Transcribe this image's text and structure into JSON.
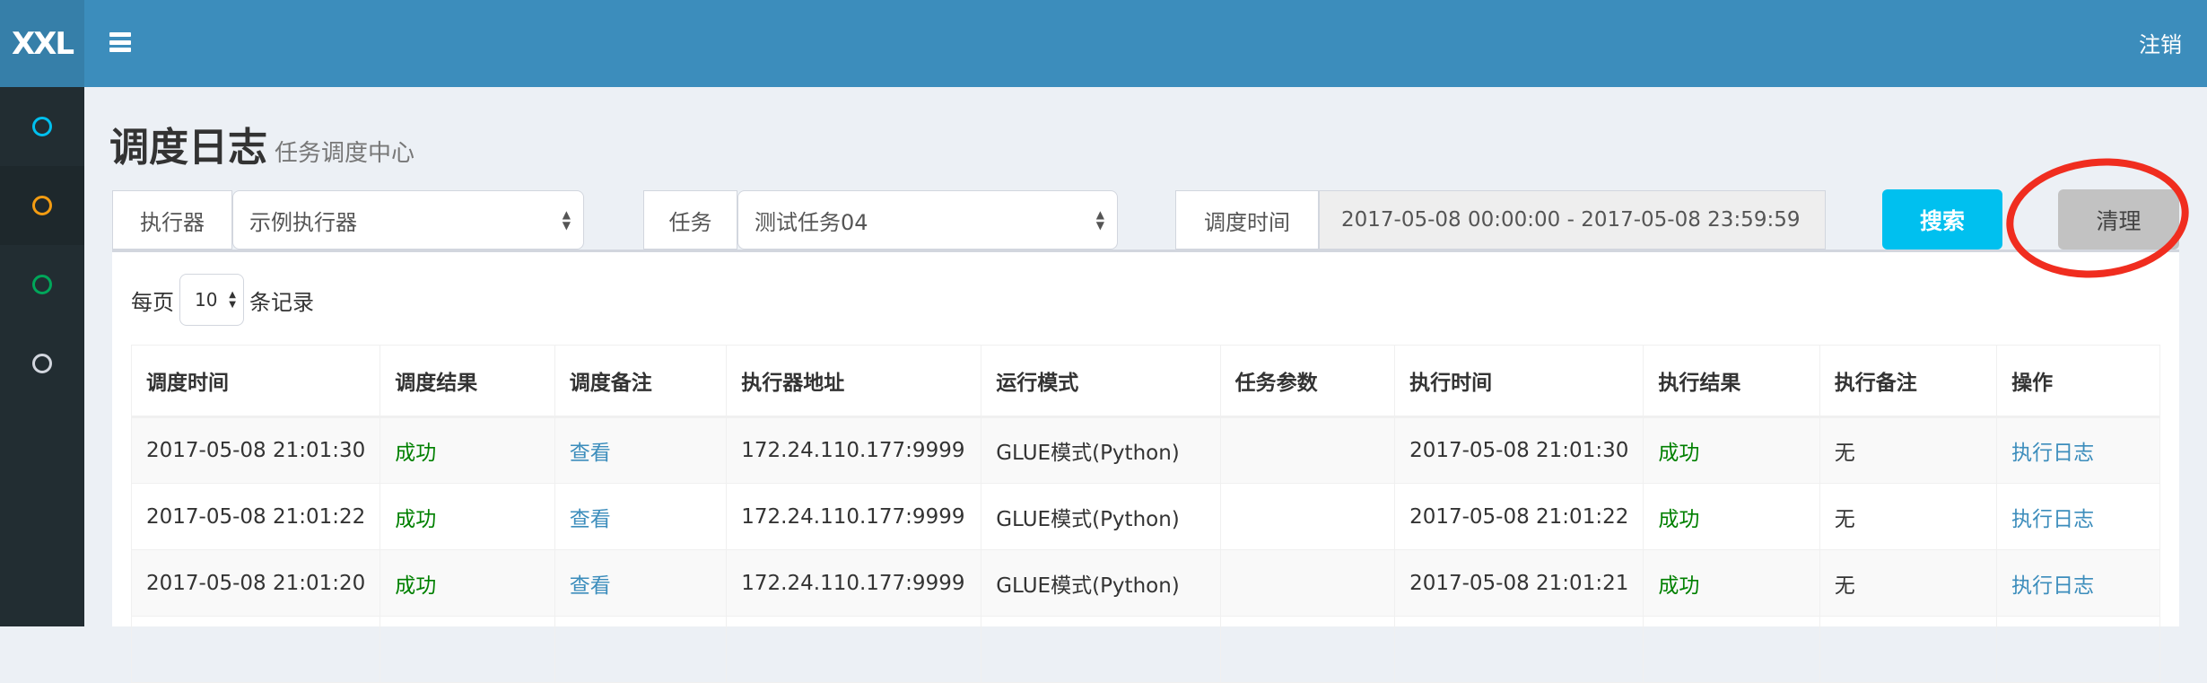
{
  "header": {
    "logo": "XXL",
    "logout": "注销",
    "menu_icon": "hamburger-icon"
  },
  "sidebar": {
    "items": [
      {
        "icon": "circle-icon",
        "color": "#00c0ef"
      },
      {
        "icon": "circle-icon",
        "color": "#f39c12",
        "active": true
      },
      {
        "icon": "circle-icon",
        "color": "#00a65a"
      },
      {
        "icon": "circle-icon",
        "color": "#d2d6de"
      }
    ]
  },
  "page": {
    "title": "调度日志",
    "subtitle": "任务调度中心"
  },
  "filters": {
    "executor_label": "执行器",
    "executor_value": "示例执行器",
    "task_label": "任务",
    "task_value": "测试任务04",
    "time_label": "调度时间",
    "time_value": "2017-05-08 00:00:00 - 2017-05-08 23:59:59",
    "search": "搜索",
    "clear": "清理"
  },
  "paging": {
    "prefix": "每页",
    "value": "10",
    "suffix": "条记录"
  },
  "table": {
    "columns": [
      "调度时间",
      "调度结果",
      "调度备注",
      "执行器地址",
      "运行模式",
      "任务参数",
      "执行时间",
      "执行结果",
      "执行备注",
      "操作"
    ],
    "rows": [
      [
        "2017-05-08 21:01:30",
        "成功",
        "查看",
        "172.24.110.177:9999",
        "GLUE模式(Python)",
        "",
        "2017-05-08 21:01:30",
        "成功",
        "无",
        "执行日志"
      ],
      [
        "2017-05-08 21:01:22",
        "成功",
        "查看",
        "172.24.110.177:9999",
        "GLUE模式(Python)",
        "",
        "2017-05-08 21:01:22",
        "成功",
        "无",
        "执行日志"
      ],
      [
        "2017-05-08 21:01:20",
        "成功",
        "查看",
        "172.24.110.177:9999",
        "GLUE模式(Python)",
        "",
        "2017-05-08 21:01:21",
        "成功",
        "无",
        "执行日志"
      ]
    ]
  },
  "colors": {
    "header": "#3c8dbc",
    "success": "#008000",
    "link": "#3c8dbc",
    "search_button": "#00c0ef",
    "annotation": "#f02d1f"
  }
}
